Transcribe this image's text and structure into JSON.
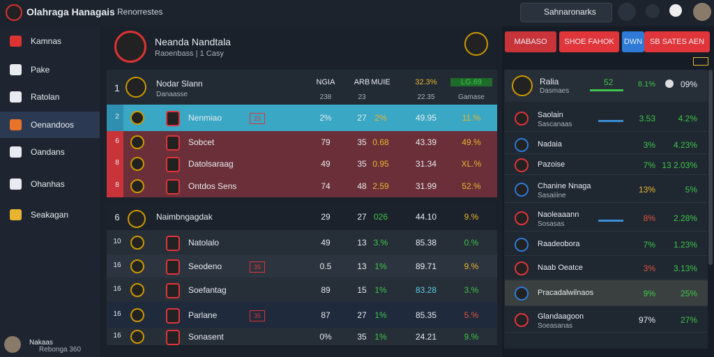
{
  "topbar": {
    "title": "Olahraga Hanagais",
    "search": "Renorrestes",
    "search_box": "Sahnaronarks"
  },
  "sidebar": {
    "items": [
      "Kamnas",
      "Pake",
      "Ratolan",
      "Oenandoos",
      "Oandans",
      "Ohanhas",
      "Seakagan"
    ],
    "active": 3,
    "user": {
      "name": "Nakaas",
      "status": "Rebonga 360"
    }
  },
  "header": {
    "team": "Neanda Nandtala",
    "subtitle": "Raoenbass | 1 Casy",
    "buttons": [
      "MABASO",
      "SHOE FAHOK",
      "DWN",
      "SB SATES AEN"
    ]
  },
  "table": {
    "head": {
      "rank": "1",
      "name": "Nodar Slann",
      "sub": "Danaasse",
      "cols": [
        "NGIA",
        "ARB",
        "MUIE",
        "32.3%",
        "LG.69"
      ],
      "subcols": [
        "238",
        "23",
        "22.35",
        "Gamase"
      ]
    },
    "rows": [
      {
        "rank": "2",
        "name": "Nenmiao",
        "badge": "23",
        "cells": [
          "2%",
          "27",
          "2%",
          "49.95",
          "11.%"
        ],
        "style": "cyan"
      },
      {
        "rank": "6",
        "name": "Sobcet",
        "cells": [
          "79",
          "35",
          "0.68",
          "43.39",
          "49.%"
        ],
        "style": "red"
      },
      {
        "rank": "8",
        "name": "Datolsaraag",
        "cells": [
          "49",
          "35",
          "0.95",
          "31.34",
          "XL.%"
        ],
        "style": "red"
      },
      {
        "rank": "8",
        "name": "Ontdos Sens",
        "cells": [
          "74",
          "48",
          "2.59",
          "31.99",
          "52.%"
        ],
        "style": "red"
      },
      {
        "rank": "6",
        "name": "Naimbngagdak",
        "cells": [
          "29",
          "27",
          "026",
          "44.10",
          "9.%"
        ],
        "style": "section"
      },
      {
        "rank": "10",
        "name": "Natolalo",
        "cells": [
          "49",
          "13",
          "3.%",
          "85.38",
          "0.%"
        ],
        "style": "dark"
      },
      {
        "rank": "16",
        "name": "Seodeno",
        "badge": "35",
        "cells": [
          "0.5",
          "13",
          "1%",
          "89.71",
          "9.%"
        ],
        "style": "mid"
      },
      {
        "rank": "16",
        "name": "Soefantag",
        "cells": [
          "89",
          "15",
          "1%",
          "83.28",
          "3.%"
        ],
        "style": "dark"
      },
      {
        "rank": "16",
        "name": "Parlane",
        "badge": "35",
        "cells": [
          "87",
          "27",
          "1%",
          "85.35",
          "5.%"
        ],
        "style": "navy"
      },
      {
        "rank": "16",
        "name": "Sonasent",
        "cells": [
          "0%",
          "35",
          "1%",
          "24.21",
          "9.%"
        ],
        "style": "dark"
      }
    ]
  },
  "panel": {
    "top": {
      "name": "Ralia",
      "sub": "Dasmaes",
      "score": "52",
      "v1": "8.1%",
      "v2": "09%"
    },
    "items": [
      {
        "name": "Saolain",
        "sub": "Sascanaas",
        "v1": "3.53",
        "v2": "4.2%"
      },
      {
        "name": "Nadaia",
        "v1": "3%",
        "v2": "4.23%"
      },
      {
        "name": "Pazoise",
        "v1": "7%",
        "v2": "13 2.03%"
      },
      {
        "name": "Chanine Nnaga",
        "sub": "Sasaiiine",
        "v1": "13%",
        "v2": "5%"
      },
      {
        "name": "Naoleaaann",
        "sub": "Sosasas",
        "v1": "8%",
        "v2": "2.28%"
      },
      {
        "name": "Raadeobora",
        "v1": "7%",
        "v2": "1.23%"
      },
      {
        "name": "Naab Oeatce",
        "v1": "3%",
        "v2": "3.13%"
      },
      {
        "name": "Pracadalwilnaos",
        "v1": "9%",
        "v2": "25%"
      },
      {
        "name": "Glandaagoon",
        "sub": "Soeasanas",
        "v1": "97%",
        "v2": "27%"
      }
    ]
  }
}
